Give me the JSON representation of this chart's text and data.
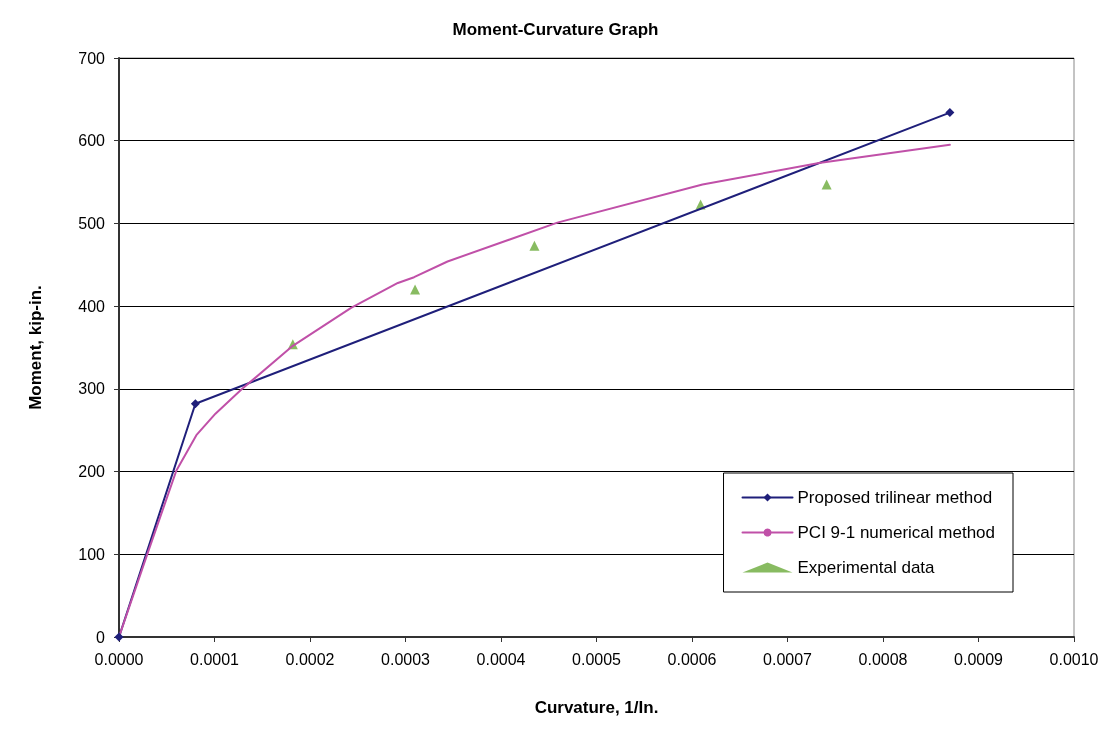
{
  "chart_data": {
    "type": "line",
    "title": "Moment-Curvature Graph",
    "xlabel": "Curvature, 1/In.",
    "ylabel": "Moment, kip-in.",
    "xlim": [
      0,
      0.001
    ],
    "xticks": [
      {
        "value": 0,
        "label": "0.0000"
      },
      {
        "value": 0.0001,
        "label": "0.0001"
      },
      {
        "value": 0.0002,
        "label": "0.0002"
      },
      {
        "value": 0.0003,
        "label": "0.0003"
      },
      {
        "value": 0.0004,
        "label": "0.0004"
      },
      {
        "value": 0.0005,
        "label": "0.0005"
      },
      {
        "value": 0.0006,
        "label": "0.0006"
      },
      {
        "value": 0.0007,
        "label": "0.0007"
      },
      {
        "value": 0.0008,
        "label": "0.0008"
      },
      {
        "value": 0.0009,
        "label": "0.0009"
      },
      {
        "value": 0.001,
        "label": "0.0010"
      }
    ],
    "ylim": [
      0,
      700
    ],
    "yticks": [
      0,
      100,
      200,
      300,
      400,
      500,
      600,
      700
    ],
    "grid": "y",
    "legend": "bottom right",
    "series": [
      {
        "name": "Proposed trilinear method",
        "color": "#1f1f7a",
        "marker": "diamond",
        "x": [
          0,
          8e-05,
          0.00087
        ],
        "values": [
          0,
          282,
          634
        ]
      },
      {
        "name": "PCI 9-1 numerical method",
        "color": "#c050a8",
        "marker": "none",
        "x": [
          0,
          2.9e-05,
          6e-05,
          8.1e-05,
          0.000101,
          0.000129,
          0.000182,
          0.000243,
          0.000292,
          0.000309,
          0.000344,
          0.000459,
          0.000611,
          0.000733,
          0.00087
        ],
        "values": [
          0,
          98,
          201,
          244,
          270,
          300,
          352,
          398,
          428,
          435,
          454,
          501,
          547,
          573,
          595
        ]
      },
      {
        "name": "Experimental data",
        "type": "scatter",
        "color": "#6aaa3a",
        "marker": "triangle",
        "x": [
          0.000182,
          0.00031,
          0.000435,
          0.000609,
          0.000741
        ],
        "values": [
          354,
          420,
          473,
          523,
          547
        ]
      }
    ]
  }
}
